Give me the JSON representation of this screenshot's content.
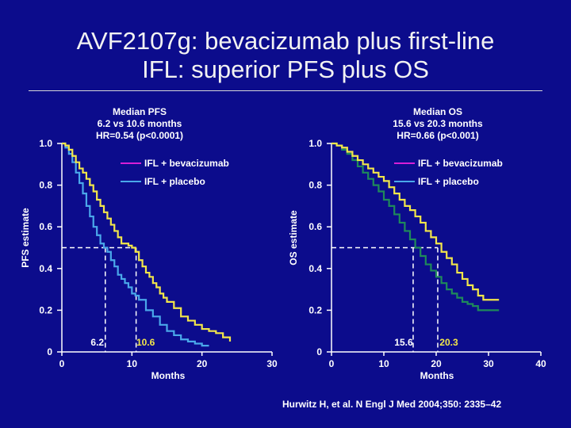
{
  "slide": {
    "title_line1": "AVF2107g: bevacizumab plus first-line",
    "title_line2": "IFL: superior PFS plus OS",
    "citation": "Hurwitz H, et al. N Engl J Med 2004;350: 2335–42"
  },
  "colors": {
    "background": "#0c0c8c",
    "bevacizumab": "#f2e64a",
    "placebo_pfs": "#4aa8ea",
    "placebo_os": "#1f8a5a",
    "legend_bev_line": "#d61fd6",
    "legend_pla_line": "#4aa8ea",
    "axis": "#ffffff",
    "reference_line": "#ffffff"
  },
  "chart_data": [
    {
      "type": "line",
      "name": "pfs",
      "ylabel": "PFS estimate",
      "xlabel": "Months",
      "xlim": [
        0,
        30
      ],
      "ylim": [
        0,
        1
      ],
      "x_ticks": [
        "0",
        "10",
        "20",
        "30"
      ],
      "y_ticks": [
        "0",
        "0.2",
        "0.4",
        "0.6",
        "0.8",
        "1.0"
      ],
      "annotation": [
        "Median PFS",
        "6.2 vs 10.6 months",
        "HR=0.54 (p<0.0001)"
      ],
      "median_labels": [
        "6.2",
        "10.6"
      ],
      "medians": [
        6.2,
        10.6
      ],
      "legend": [
        "IFL + bevacizumab",
        "IFL + placebo"
      ],
      "legend_position": "top-right",
      "series": [
        {
          "name": "IFL + bevacizumab",
          "color_key": "bevacizumab",
          "x": [
            0,
            0.5,
            1,
            1.5,
            2,
            2.5,
            3,
            3.5,
            4,
            4.5,
            5,
            5.5,
            6,
            6.5,
            7,
            7.5,
            8,
            8.5,
            9,
            9.5,
            10,
            10.5,
            11,
            11.5,
            12,
            12.5,
            13,
            13.5,
            14,
            14.5,
            15,
            16,
            17,
            18,
            19,
            20,
            21,
            22,
            23,
            24
          ],
          "y": [
            1.0,
            0.99,
            0.97,
            0.94,
            0.91,
            0.88,
            0.86,
            0.83,
            0.8,
            0.77,
            0.73,
            0.7,
            0.67,
            0.64,
            0.61,
            0.58,
            0.55,
            0.52,
            0.52,
            0.51,
            0.5,
            0.48,
            0.44,
            0.41,
            0.38,
            0.36,
            0.33,
            0.31,
            0.28,
            0.26,
            0.24,
            0.21,
            0.17,
            0.15,
            0.13,
            0.11,
            0.1,
            0.09,
            0.07,
            0.05
          ]
        },
        {
          "name": "IFL + placebo",
          "color_key": "placebo_pfs",
          "x": [
            0,
            0.5,
            1,
            1.5,
            2,
            2.5,
            3,
            3.5,
            4,
            4.5,
            5,
            5.5,
            6,
            6.5,
            7,
            7.5,
            8,
            8.5,
            9,
            9.5,
            10,
            10.5,
            11,
            12,
            13,
            14,
            15,
            16,
            17,
            18,
            19,
            20,
            21
          ],
          "y": [
            1.0,
            0.98,
            0.95,
            0.91,
            0.86,
            0.81,
            0.76,
            0.7,
            0.65,
            0.6,
            0.56,
            0.52,
            0.5,
            0.48,
            0.44,
            0.41,
            0.37,
            0.35,
            0.33,
            0.31,
            0.28,
            0.27,
            0.25,
            0.2,
            0.17,
            0.13,
            0.1,
            0.08,
            0.06,
            0.05,
            0.04,
            0.03,
            0.03
          ]
        }
      ]
    },
    {
      "type": "line",
      "name": "os",
      "ylabel": "OS estimate",
      "xlabel": "Months",
      "xlim": [
        0,
        40
      ],
      "ylim": [
        0,
        1
      ],
      "x_ticks": [
        "0",
        "10",
        "20",
        "30",
        "40"
      ],
      "y_ticks": [
        "0",
        "0.2",
        "0.4",
        "0.6",
        "0.8",
        "1.0"
      ],
      "annotation": [
        "Median OS",
        "15.6 vs 20.3 months",
        "HR=0.66 (p<0.001)"
      ],
      "median_labels": [
        "15.6",
        "20.3"
      ],
      "medians": [
        15.6,
        20.3
      ],
      "legend": [
        "IFL + bevacizumab",
        "IFL + placebo"
      ],
      "legend_position": "top-right",
      "series": [
        {
          "name": "IFL + bevacizumab",
          "color_key": "bevacizumab",
          "x": [
            0,
            1,
            2,
            3,
            4,
            5,
            6,
            7,
            8,
            9,
            10,
            11,
            12,
            13,
            14,
            15,
            16,
            17,
            18,
            19,
            20,
            21,
            22,
            23,
            24,
            25,
            26,
            27,
            28,
            29,
            30,
            31,
            32
          ],
          "y": [
            1.0,
            0.99,
            0.98,
            0.96,
            0.94,
            0.92,
            0.9,
            0.88,
            0.86,
            0.84,
            0.82,
            0.79,
            0.76,
            0.73,
            0.7,
            0.68,
            0.65,
            0.62,
            0.58,
            0.55,
            0.52,
            0.48,
            0.45,
            0.42,
            0.38,
            0.35,
            0.32,
            0.3,
            0.27,
            0.25,
            0.25,
            0.25,
            0.25
          ]
        },
        {
          "name": "IFL + placebo",
          "color_key": "placebo_os",
          "x": [
            0,
            1,
            2,
            3,
            4,
            5,
            6,
            7,
            8,
            9,
            10,
            11,
            12,
            13,
            14,
            15,
            16,
            17,
            18,
            19,
            20,
            21,
            22,
            23,
            24,
            25,
            26,
            27,
            28,
            29,
            30,
            31,
            32
          ],
          "y": [
            1.0,
            0.99,
            0.97,
            0.95,
            0.92,
            0.89,
            0.86,
            0.83,
            0.8,
            0.77,
            0.73,
            0.7,
            0.66,
            0.62,
            0.58,
            0.54,
            0.5,
            0.46,
            0.42,
            0.39,
            0.36,
            0.33,
            0.3,
            0.28,
            0.26,
            0.24,
            0.23,
            0.22,
            0.2,
            0.2,
            0.2,
            0.2,
            0.2
          ]
        }
      ]
    }
  ]
}
